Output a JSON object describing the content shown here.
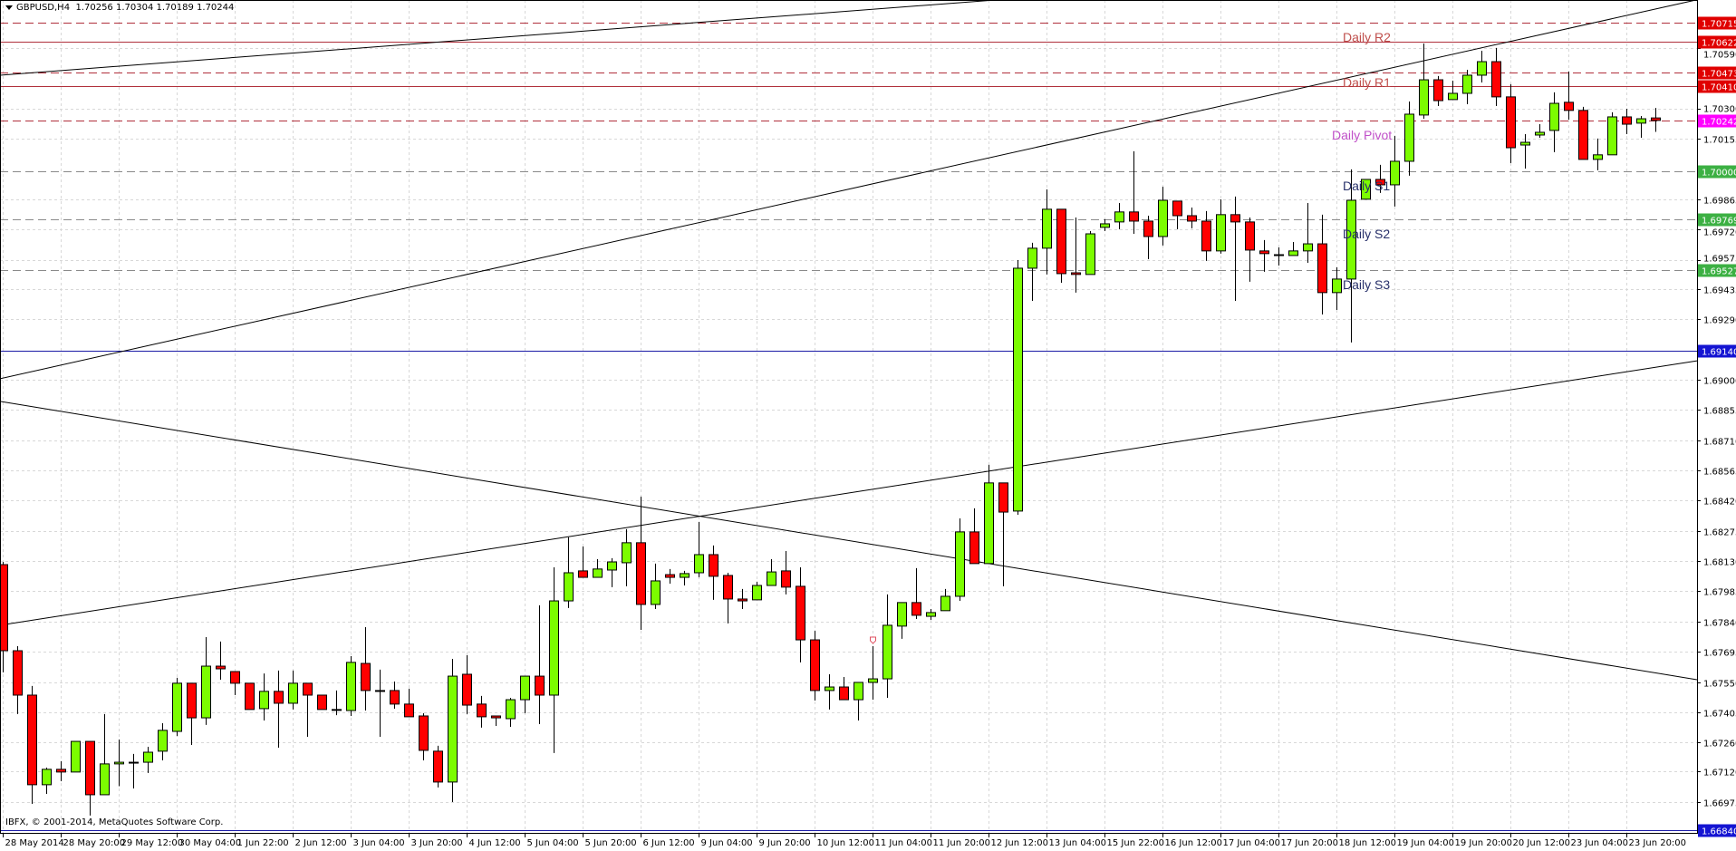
{
  "header": {
    "symbol_timeframe": "GBPUSD,H4",
    "ohlc": "1.70256 1.70304 1.70189 1.70244"
  },
  "copyright": "IBFX, © 2001-2014, MetaQuotes Software Corp.",
  "colors": {
    "bull": "#7cfc00",
    "bear": "#ff0000",
    "resistance_line": "#b0303c",
    "support_line": "#8a8a8a",
    "pivot_box": "#ff00ff",
    "support_box": "#3cb043",
    "resistance_box": "#e00000",
    "blue_line": "#1a1aa6",
    "grid": "#d8d8d8"
  },
  "level_labels": [
    {
      "text": "Daily R2",
      "color": "#c0504d",
      "price": 1.70715
    },
    {
      "text": "Daily R1",
      "color": "#c0504d",
      "price": 1.7041
    },
    {
      "text": "Daily Pivot",
      "color": "#c050c8",
      "price": 1.70242
    },
    {
      "text": "Daily S1",
      "color": "#27306a",
      "price": 1.7
    },
    {
      "text": "Daily S2",
      "color": "#27306a",
      "price": 1.69769
    },
    {
      "text": "Daily S3",
      "color": "#27306a",
      "price": 1.69527
    }
  ],
  "chart_data": {
    "type": "candlestick",
    "title": "GBPUSD,H4",
    "x_labels": [
      "28 May 2014",
      "28 May 20:00",
      "29 May 12:00",
      "30 May 04:00",
      "1 Jun 22:00",
      "2 Jun 12:00",
      "3 Jun 04:00",
      "3 Jun 20:00",
      "4 Jun 12:00",
      "5 Jun 04:00",
      "5 Jun 20:00",
      "6 Jun 12:00",
      "9 Jun 04:00",
      "9 Jun 20:00",
      "10 Jun 12:00",
      "11 Jun 04:00",
      "11 Jun 20:00",
      "12 Jun 12:00",
      "13 Jun 04:00",
      "15 Jun 22:00",
      "16 Jun 12:00",
      "17 Jun 04:00",
      "17 Jun 20:00",
      "18 Jun 12:00",
      "19 Jun 04:00",
      "19 Jun 20:00",
      "20 Jun 12:00",
      "23 Jun 04:00",
      "23 Jun 20:00"
    ],
    "y_ticks": [
      "1.70590",
      "1.70300",
      "1.70155",
      "1.69865",
      "1.69720",
      "1.69575",
      "1.69435",
      "1.69290",
      "1.69000",
      "1.68855",
      "1.68710",
      "1.68565",
      "1.68420",
      "1.68275",
      "1.68130",
      "1.67985",
      "1.67840",
      "1.67695",
      "1.67550",
      "1.67405",
      "1.67260",
      "1.67120",
      "1.66975"
    ],
    "ylim": [
      1.6683,
      1.7082
    ],
    "grid": true,
    "candles_ohlc": [
      [
        1.68113,
        1.68126,
        1.67596,
        1.677
      ],
      [
        1.677,
        1.67722,
        1.67396,
        1.67487
      ],
      [
        1.67487,
        1.67531,
        1.66965,
        1.67057
      ],
      [
        1.67057,
        1.67139,
        1.67013,
        1.67131
      ],
      [
        1.67131,
        1.6717,
        1.67074,
        1.67118
      ],
      [
        1.67118,
        1.67265,
        1.67118,
        1.67265
      ],
      [
        1.67265,
        1.67265,
        1.66909,
        1.67009
      ],
      [
        1.67009,
        1.67396,
        1.67009,
        1.67157
      ],
      [
        1.67157,
        1.67274,
        1.6705,
        1.67165
      ],
      [
        1.67165,
        1.67205,
        1.67039,
        1.67165
      ],
      [
        1.67165,
        1.67239,
        1.67113,
        1.67213
      ],
      [
        1.67218,
        1.67352,
        1.67174,
        1.67318
      ],
      [
        1.67313,
        1.6757,
        1.67291,
        1.67544
      ],
      [
        1.67544,
        1.67544,
        1.67248,
        1.67378
      ],
      [
        1.67378,
        1.67765,
        1.67344,
        1.67626
      ],
      [
        1.67626,
        1.67744,
        1.67561,
        1.67613
      ],
      [
        1.676,
        1.676,
        1.67487,
        1.67544
      ],
      [
        1.67544,
        1.67544,
        1.67418,
        1.67418
      ],
      [
        1.67422,
        1.67591,
        1.67365,
        1.67505
      ],
      [
        1.67505,
        1.67605,
        1.67235,
        1.67448
      ],
      [
        1.67448,
        1.67605,
        1.67418,
        1.67544
      ],
      [
        1.67544,
        1.67544,
        1.67287,
        1.67487
      ],
      [
        1.67487,
        1.67487,
        1.67418,
        1.67418
      ],
      [
        1.67418,
        1.67509,
        1.67391,
        1.67418
      ],
      [
        1.67413,
        1.67674,
        1.67387,
        1.67644
      ],
      [
        1.67639,
        1.67813,
        1.67413,
        1.67509
      ],
      [
        1.67509,
        1.67609,
        1.67287,
        1.67509
      ],
      [
        1.67509,
        1.67552,
        1.67422,
        1.67444
      ],
      [
        1.67444,
        1.67518,
        1.67383,
        1.67383
      ],
      [
        1.67387,
        1.674,
        1.67174,
        1.67222
      ],
      [
        1.67218,
        1.67244,
        1.67044,
        1.6707
      ],
      [
        1.6707,
        1.67661,
        1.66974,
        1.67578
      ],
      [
        1.67587,
        1.67678,
        1.67396,
        1.67439
      ],
      [
        1.67444,
        1.67483,
        1.67331,
        1.67383
      ],
      [
        1.67387,
        1.67387,
        1.67339,
        1.67378
      ],
      [
        1.67374,
        1.67474,
        1.67335,
        1.67465
      ],
      [
        1.67465,
        1.67578,
        1.674,
        1.67578
      ],
      [
        1.67578,
        1.67918,
        1.67348,
        1.67487
      ],
      [
        1.67487,
        1.681,
        1.67209,
        1.67939
      ],
      [
        1.67939,
        1.68244,
        1.67905,
        1.68074
      ],
      [
        1.68083,
        1.682,
        1.68052,
        1.68052
      ],
      [
        1.68052,
        1.68139,
        1.68052,
        1.68092
      ],
      [
        1.68087,
        1.68144,
        1.68005,
        1.68126
      ],
      [
        1.68122,
        1.68283,
        1.68009,
        1.68218
      ],
      [
        1.68218,
        1.68439,
        1.678,
        1.67922
      ],
      [
        1.67922,
        1.68118,
        1.679,
        1.68035
      ],
      [
        1.68065,
        1.68092,
        1.68022,
        1.68052
      ],
      [
        1.68052,
        1.68083,
        1.68013,
        1.6807
      ],
      [
        1.68074,
        1.68318,
        1.68052,
        1.68161
      ],
      [
        1.68161,
        1.68205,
        1.67944,
        1.68057
      ],
      [
        1.68061,
        1.68074,
        1.67831,
        1.67948
      ],
      [
        1.67948,
        1.67996,
        1.679,
        1.67939
      ],
      [
        1.67944,
        1.68031,
        1.67944,
        1.68013
      ],
      [
        1.68013,
        1.68139,
        1.68013,
        1.68078
      ],
      [
        1.68083,
        1.68178,
        1.6797,
        1.68005
      ],
      [
        1.68009,
        1.681,
        1.67644,
        1.67752
      ],
      [
        1.67752,
        1.67796,
        1.67461,
        1.67509
      ],
      [
        1.67509,
        1.67587,
        1.67418,
        1.67526
      ],
      [
        1.67526,
        1.67574,
        1.67465,
        1.67465
      ],
      [
        1.67465,
        1.67548,
        1.67365,
        1.67548
      ],
      [
        1.67548,
        1.67722,
        1.67465,
        1.67565
      ],
      [
        1.67565,
        1.6797,
        1.67474,
        1.67822
      ],
      [
        1.67818,
        1.67931,
        1.67757,
        1.67931
      ],
      [
        1.67931,
        1.68096,
        1.67852,
        1.6787
      ],
      [
        1.67865,
        1.679,
        1.67848,
        1.67883
      ],
      [
        1.67892,
        1.67996,
        1.67892,
        1.67961
      ],
      [
        1.67961,
        1.68335,
        1.67939,
        1.6827
      ],
      [
        1.6827,
        1.68383,
        1.68118,
        1.68118
      ],
      [
        1.68118,
        1.68592,
        1.68118,
        1.68505
      ],
      [
        1.68505,
        1.68505,
        1.68009,
        1.68365
      ],
      [
        1.6837,
        1.69574,
        1.68352,
        1.69535
      ],
      [
        1.69535,
        1.69657,
        1.69378,
        1.69631
      ],
      [
        1.69631,
        1.69913,
        1.69505,
        1.69818
      ],
      [
        1.69818,
        1.69818,
        1.69465,
        1.69509
      ],
      [
        1.69513,
        1.69778,
        1.69418,
        1.69505
      ],
      [
        1.69505,
        1.69713,
        1.69505,
        1.697
      ],
      [
        1.69731,
        1.6977,
        1.69713,
        1.69748
      ],
      [
        1.69757,
        1.69848,
        1.69722,
        1.69805
      ],
      [
        1.69805,
        1.70096,
        1.697,
        1.69761
      ],
      [
        1.69761,
        1.69787,
        1.69578,
        1.69687
      ],
      [
        1.69687,
        1.69926,
        1.69644,
        1.69861
      ],
      [
        1.69857,
        1.69857,
        1.69722,
        1.69787
      ],
      [
        1.69787,
        1.69826,
        1.69726,
        1.69761
      ],
      [
        1.69761,
        1.69809,
        1.6957,
        1.69618
      ],
      [
        1.69618,
        1.69865,
        1.69605,
        1.69792
      ],
      [
        1.69792,
        1.69879,
        1.69378,
        1.69757
      ],
      [
        1.69757,
        1.69778,
        1.6947,
        1.69622
      ],
      [
        1.69618,
        1.6967,
        1.69518,
        1.69605
      ],
      [
        1.696,
        1.69635,
        1.69548,
        1.69596
      ],
      [
        1.69596,
        1.69661,
        1.69596,
        1.69618
      ],
      [
        1.69618,
        1.69848,
        1.69561,
        1.69652
      ],
      [
        1.69652,
        1.69792,
        1.69313,
        1.69418
      ],
      [
        1.69418,
        1.69539,
        1.69335,
        1.69483
      ],
      [
        1.69483,
        1.70009,
        1.69179,
        1.69861
      ],
      [
        1.69866,
        1.69961,
        1.69866,
        1.69961
      ],
      [
        1.69961,
        1.70031,
        1.69896,
        1.69935
      ],
      [
        1.69935,
        1.7017,
        1.69831,
        1.70048
      ],
      [
        1.70048,
        1.70335,
        1.69979,
        1.70274
      ],
      [
        1.7027,
        1.70613,
        1.70252,
        1.70439
      ],
      [
        1.70439,
        1.70457,
        1.70313,
        1.70339
      ],
      [
        1.70344,
        1.70435,
        1.70344,
        1.70374
      ],
      [
        1.70374,
        1.70487,
        1.70322,
        1.70461
      ],
      [
        1.70461,
        1.70578,
        1.70426,
        1.70526
      ],
      [
        1.70526,
        1.70592,
        1.70313,
        1.70357
      ],
      [
        1.70357,
        1.70418,
        1.70039,
        1.70113
      ],
      [
        1.70126,
        1.70178,
        1.70013,
        1.70139
      ],
      [
        1.70174,
        1.70226,
        1.70161,
        1.70187
      ],
      [
        1.70196,
        1.70379,
        1.70092,
        1.70326
      ],
      [
        1.70331,
        1.70478,
        1.70248,
        1.70292
      ],
      [
        1.70292,
        1.70309,
        1.70057,
        1.70057
      ],
      [
        1.70057,
        1.70157,
        1.70005,
        1.70079
      ],
      [
        1.70079,
        1.70283,
        1.70079,
        1.70261
      ],
      [
        1.70261,
        1.703,
        1.70178,
        1.70226
      ],
      [
        1.70231,
        1.70265,
        1.70161,
        1.70252
      ],
      [
        1.70256,
        1.70304,
        1.70189,
        1.70244
      ]
    ],
    "horizontal_levels": [
      {
        "price": "1.70715",
        "style": "dashed",
        "line_color": "#b0303c",
        "box_color": "#e00000"
      },
      {
        "price": "1.70622",
        "style": "solid",
        "line_color": "#b0303c",
        "box_color": "#e00000"
      },
      {
        "price": "1.70473",
        "style": "dashed",
        "line_color": "#b0303c",
        "box_color": "#e00000"
      },
      {
        "price": "1.70410",
        "style": "solid",
        "line_color": "#b0303c",
        "box_color": "#e00000"
      },
      {
        "price": "1.70242",
        "style": "dashed",
        "line_color": "#b0303c",
        "box_color": "#ff00ff"
      },
      {
        "price": "1.70000",
        "style": "dashed",
        "line_color": "#8a8a8a",
        "box_color": "#3cb043"
      },
      {
        "price": "1.69769",
        "style": "dashed",
        "line_color": "#8a8a8a",
        "box_color": "#3cb043"
      },
      {
        "price": "1.69527",
        "style": "dashed",
        "line_color": "#8a8a8a",
        "box_color": "#3cb043"
      },
      {
        "price": "1.69140",
        "style": "solid",
        "line_color": "#1a1aa6",
        "box_color": "#1414d2"
      },
      {
        "price": "1.66840",
        "style": "solid",
        "line_color": "#1a1aa6",
        "box_color": "#1414d2"
      }
    ],
    "trendlines": [
      {
        "left_price": 1.69005,
        "right_price": 1.70823
      },
      {
        "left_price": 1.70461,
        "right_price": 1.71076
      },
      {
        "left_price": 1.67822,
        "right_price": 1.69091
      },
      {
        "left_price": 1.68896,
        "right_price": 1.67561
      }
    ],
    "arrow_marker": {
      "bar_time": "11 Jun 04:00",
      "price": 1.67722
    }
  }
}
